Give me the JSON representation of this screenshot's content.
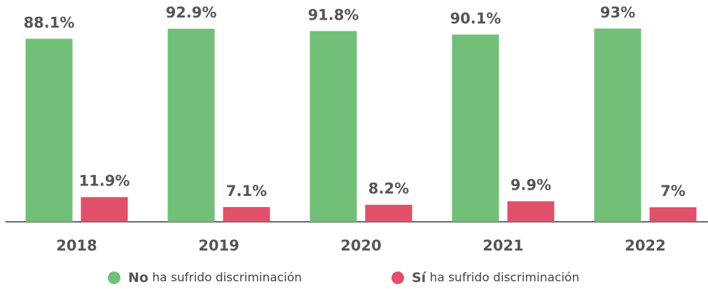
{
  "chart_data": {
    "type": "bar",
    "categories": [
      "2018",
      "2019",
      "2020",
      "2021",
      "2022"
    ],
    "series": [
      {
        "name": "No ha sufrido discriminación",
        "color": "#72bf78",
        "values": [
          88.1,
          92.9,
          91.8,
          90.1,
          93
        ],
        "value_labels": [
          "88.1%",
          "92.9%",
          "91.8%",
          "90.1%",
          "93%"
        ]
      },
      {
        "name": "Sí ha sufrido discriminación",
        "color": "#e0506a",
        "values": [
          11.9,
          7.1,
          8.2,
          9.9,
          7
        ],
        "value_labels": [
          "11.9%",
          "7.1%",
          "8.2%",
          "9.9%",
          "7%"
        ]
      }
    ],
    "ylim": [
      0,
      100
    ],
    "legend": "bottom"
  }
}
